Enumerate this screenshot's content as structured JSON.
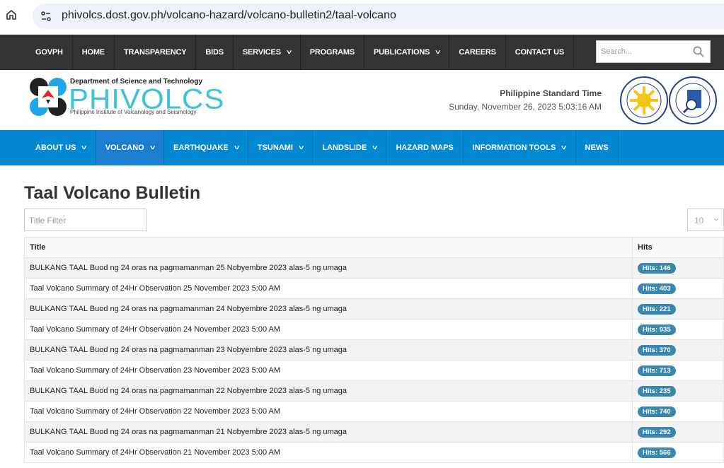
{
  "browser": {
    "url": "phivolcs.dost.gov.ph/volcano-hazard/volcano-bulletin2/taal-volcano"
  },
  "topnav": {
    "items": [
      {
        "label": "GOVPH"
      },
      {
        "label": "HOME"
      },
      {
        "label": "TRANSPARENCY"
      },
      {
        "label": "BIDS"
      },
      {
        "label": "SERVICES",
        "dropdown": true
      },
      {
        "label": "PROGRAMS"
      },
      {
        "label": "PUBLICATIONS",
        "dropdown": true
      },
      {
        "label": "CAREERS"
      },
      {
        "label": "CONTACT US"
      }
    ],
    "search_placeholder": "Search..."
  },
  "header": {
    "dept": "Department of Science and Technology",
    "logo_text": "PHIVOLCS",
    "institute": "Philippine Institute of Volcanology and Seismology",
    "pst_label": "Philippine Standard Time",
    "pst_value": "Sunday, November 26, 2023 5:03:16 AM",
    "seals": [
      "Transparency Seal",
      "Freedom of Information Philippines"
    ]
  },
  "mainnav": {
    "items": [
      {
        "label": "ABOUT US",
        "dropdown": true
      },
      {
        "label": "VOLCANO",
        "dropdown": true,
        "active": true
      },
      {
        "label": "EARTHQUAKE",
        "dropdown": true
      },
      {
        "label": "TSUNAMI",
        "dropdown": true
      },
      {
        "label": "LANDSLIDE",
        "dropdown": true
      },
      {
        "label": "HAZARD MAPS"
      },
      {
        "label": "INFORMATION TOOLS",
        "dropdown": true
      },
      {
        "label": "NEWS"
      }
    ]
  },
  "page": {
    "title": "Taal Volcano Bulletin",
    "filter_placeholder": "Title Filter",
    "limit": "10"
  },
  "table": {
    "headers": [
      "Title",
      "Hits"
    ],
    "rows": [
      {
        "title": "BULKANG TAAL Buod ng 24 oras na pagmamanman 25 Nobyembre 2023 alas-5 ng umaga",
        "hits": "Hits: 146"
      },
      {
        "title": "Taal Volcano Summary of 24Hr Observation 25 November 2023 5:00 AM",
        "hits": "Hits: 403"
      },
      {
        "title": "BULKANG TAAL Buod ng 24 oras na pagmamanman 24 Nobyembre 2023 alas-5 ng umaga",
        "hits": "Hits: 221"
      },
      {
        "title": "Taal Volcano Summary of 24Hr Observation 24 November 2023 5:00 AM",
        "hits": "Hits: 935"
      },
      {
        "title": "BULKANG TAAL Buod ng 24 oras na pagmamanman 23 Nobyembre 2023 alas-5 ng umaga",
        "hits": "Hits: 370"
      },
      {
        "title": "Taal Volcano Summary of 24Hr Observation 23 November 2023 5:00 AM",
        "hits": "Hits: 713"
      },
      {
        "title": "BULKANG TAAL Buod ng 24 oras na pagmamanman 22 Nobyembre 2023 alas-5 ng umaga",
        "hits": "Hits: 235"
      },
      {
        "title": "Taal Volcano Summary of 24Hr Observation 22 November 2023 5:00 AM",
        "hits": "Hits: 740"
      },
      {
        "title": "BULKANG TAAL Buod ng 24 oras na pagmamanman 21 Nobyembre 2023 alas-5 ng umaga",
        "hits": "Hits: 292"
      },
      {
        "title": "Taal Volcano Summary of 24Hr Observation 21 November 2023 5:00 AM",
        "hits": "Hits: 566"
      }
    ]
  },
  "colors": {
    "topnav": "#333333",
    "mainnav": "#0388d1",
    "logo": "#3fc1d6",
    "badge": "#3a87ad"
  }
}
